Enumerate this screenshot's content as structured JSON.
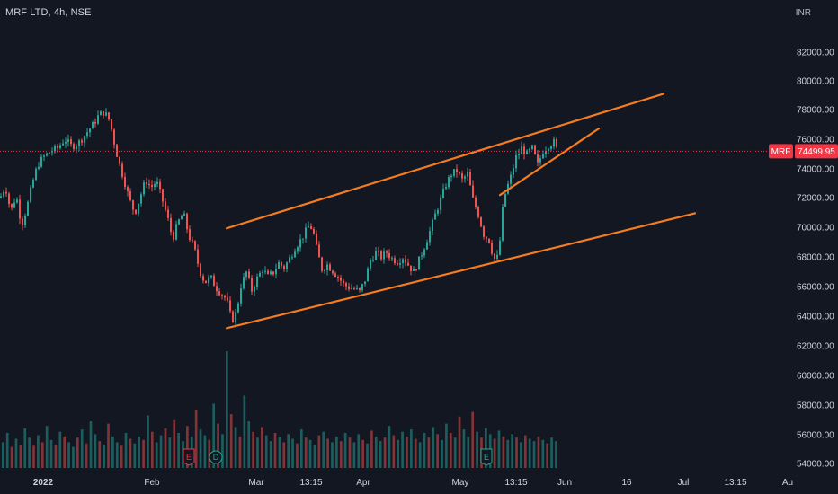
{
  "chart_data": {
    "type": "candlestick",
    "symbol_title": "MRF LTD, 4h, NSE",
    "currency": "INR",
    "symbol_badge": "MRF",
    "last_price_label": "74499.95",
    "last_price": 74499.95,
    "ylim": [
      53500,
      84500
    ],
    "y_ticks": [
      "82000.00",
      "80000.00",
      "78000.00",
      "76000.00",
      "74000.00",
      "72000.00",
      "70000.00",
      "68000.00",
      "66000.00",
      "64000.00",
      "62000.00",
      "60000.00",
      "58000.00",
      "56000.00",
      "54000.00"
    ],
    "x_ticks": [
      {
        "label": "2022",
        "bold": true
      },
      {
        "label": "Feb",
        "bold": false
      },
      {
        "label": "Mar",
        "bold": false
      },
      {
        "label": "13:15",
        "bold": false
      },
      {
        "label": "Apr",
        "bold": false
      },
      {
        "label": "May",
        "bold": false
      },
      {
        "label": "13:15",
        "bold": false
      },
      {
        "label": "Jun",
        "bold": false
      },
      {
        "label": "16",
        "bold": false
      },
      {
        "label": "Jul",
        "bold": false
      },
      {
        "label": "13:15",
        "bold": false
      },
      {
        "label": "Au",
        "bold": false
      }
    ],
    "price_path": [
      [
        0,
        71400
      ],
      [
        6,
        72200
      ],
      [
        12,
        70500
      ],
      [
        18,
        71600
      ],
      [
        24,
        69600
      ],
      [
        30,
        70800
      ],
      [
        36,
        72400
      ],
      [
        42,
        73600
      ],
      [
        48,
        74100
      ],
      [
        56,
        74500
      ],
      [
        64,
        74700
      ],
      [
        72,
        75300
      ],
      [
        80,
        74800
      ],
      [
        88,
        75100
      ],
      [
        96,
        75700
      ],
      [
        104,
        76300
      ],
      [
        110,
        76900
      ],
      [
        116,
        77100
      ],
      [
        122,
        76500
      ],
      [
        128,
        74800
      ],
      [
        132,
        73800
      ],
      [
        138,
        72600
      ],
      [
        144,
        71300
      ],
      [
        150,
        70400
      ],
      [
        156,
        71500
      ],
      [
        162,
        72600
      ],
      [
        168,
        72100
      ],
      [
        174,
        72500
      ],
      [
        180,
        71400
      ],
      [
        186,
        70200
      ],
      [
        192,
        68700
      ],
      [
        198,
        69800
      ],
      [
        204,
        70400
      ],
      [
        210,
        68900
      ],
      [
        216,
        68100
      ],
      [
        222,
        66600
      ],
      [
        228,
        65800
      ],
      [
        234,
        66200
      ],
      [
        240,
        65500
      ],
      [
        246,
        65100
      ],
      [
        252,
        64700
      ],
      [
        256,
        63700
      ],
      [
        260,
        63300
      ],
      [
        264,
        64200
      ],
      [
        268,
        65600
      ],
      [
        274,
        66500
      ],
      [
        280,
        65300
      ],
      [
        286,
        66100
      ],
      [
        292,
        66700
      ],
      [
        298,
        66200
      ],
      [
        304,
        66500
      ],
      [
        310,
        67100
      ],
      [
        316,
        66800
      ],
      [
        322,
        67400
      ],
      [
        328,
        68100
      ],
      [
        334,
        68600
      ],
      [
        340,
        69200
      ],
      [
        344,
        69600
      ],
      [
        348,
        69300
      ],
      [
        352,
        68100
      ],
      [
        358,
        66700
      ],
      [
        364,
        67000
      ],
      [
        370,
        66600
      ],
      [
        376,
        66200
      ],
      [
        382,
        65700
      ],
      [
        388,
        65500
      ],
      [
        394,
        65400
      ],
      [
        400,
        65200
      ],
      [
        406,
        66000
      ],
      [
        412,
        67300
      ],
      [
        418,
        67800
      ],
      [
        424,
        67500
      ],
      [
        430,
        67800
      ],
      [
        436,
        67400
      ],
      [
        442,
        67200
      ],
      [
        448,
        67500
      ],
      [
        454,
        67000
      ],
      [
        460,
        66500
      ],
      [
        466,
        67300
      ],
      [
        472,
        68200
      ],
      [
        478,
        69200
      ],
      [
        484,
        70300
      ],
      [
        490,
        71300
      ],
      [
        496,
        72300
      ],
      [
        502,
        73000
      ],
      [
        508,
        73200
      ],
      [
        514,
        72600
      ],
      [
        520,
        73000
      ],
      [
        526,
        71300
      ],
      [
        532,
        70300
      ],
      [
        538,
        69000
      ],
      [
        544,
        68600
      ],
      [
        548,
        67700
      ],
      [
        552,
        67100
      ],
      [
        556,
        68600
      ],
      [
        560,
        71300
      ],
      [
        564,
        72100
      ],
      [
        568,
        72800
      ],
      [
        574,
        74100
      ],
      [
        580,
        74700
      ],
      [
        586,
        74300
      ],
      [
        592,
        74700
      ],
      [
        598,
        73600
      ],
      [
        604,
        74500
      ],
      [
        610,
        74900
      ],
      [
        616,
        75100
      ],
      [
        620,
        74500
      ]
    ],
    "volume_levels": [
      0.22,
      0.3,
      0.18,
      0.25,
      0.2,
      0.34,
      0.26,
      0.19,
      0.28,
      0.22,
      0.36,
      0.24,
      0.2,
      0.31,
      0.27,
      0.22,
      0.18,
      0.26,
      0.33,
      0.21,
      0.4,
      0.29,
      0.23,
      0.2,
      0.38,
      0.27,
      0.22,
      0.19,
      0.3,
      0.25,
      0.21,
      0.27,
      0.24,
      0.45,
      0.31,
      0.22,
      0.28,
      0.34,
      0.26,
      0.41,
      0.3,
      0.23,
      0.36,
      0.27,
      0.5,
      0.33,
      0.28,
      0.24,
      0.55,
      0.38,
      0.29,
      1.0,
      0.46,
      0.35,
      0.27,
      0.62,
      0.4,
      0.31,
      0.26,
      0.35,
      0.28,
      0.23,
      0.3,
      0.27,
      0.22,
      0.29,
      0.25,
      0.21,
      0.33,
      0.26,
      0.24,
      0.2,
      0.28,
      0.31,
      0.25,
      0.22,
      0.27,
      0.23,
      0.3,
      0.26,
      0.22,
      0.29,
      0.24,
      0.21,
      0.32,
      0.27,
      0.23,
      0.26,
      0.36,
      0.28,
      0.24,
      0.31,
      0.27,
      0.33,
      0.25,
      0.22,
      0.3,
      0.26,
      0.35,
      0.29,
      0.24,
      0.38,
      0.3,
      0.26,
      0.44,
      0.33,
      0.27,
      0.48,
      0.31,
      0.26,
      0.34,
      0.29,
      0.25,
      0.32,
      0.27,
      0.24,
      0.29,
      0.26,
      0.22,
      0.28,
      0.25,
      0.23,
      0.27,
      0.24,
      0.21,
      0.26,
      0.23
    ],
    "channel_lines": [
      {
        "name": "upper-channel",
        "from": [
          "Feb 22",
          69400
        ],
        "to": [
          "Jun 28",
          78300
        ]
      },
      {
        "name": "lower-channel",
        "from": [
          "Feb 22",
          62800
        ],
        "to": [
          "Jul 8",
          70400
        ]
      },
      {
        "name": "wedge-line",
        "from": [
          "May 11",
          71600
        ],
        "to": [
          "Jun 7",
          76000
        ]
      }
    ],
    "event_markers": [
      {
        "symbol": "E",
        "color": "#f23645"
      },
      {
        "symbol": "D",
        "color": "#22ab94"
      },
      {
        "symbol": "E",
        "color": "#22ab94"
      }
    ],
    "colors": {
      "background": "#131722",
      "up": "#26a69a",
      "down": "#ef5350",
      "channel": "#f57c1f",
      "price_line": "#f23645",
      "axis_text": "#d1d4dc"
    }
  }
}
